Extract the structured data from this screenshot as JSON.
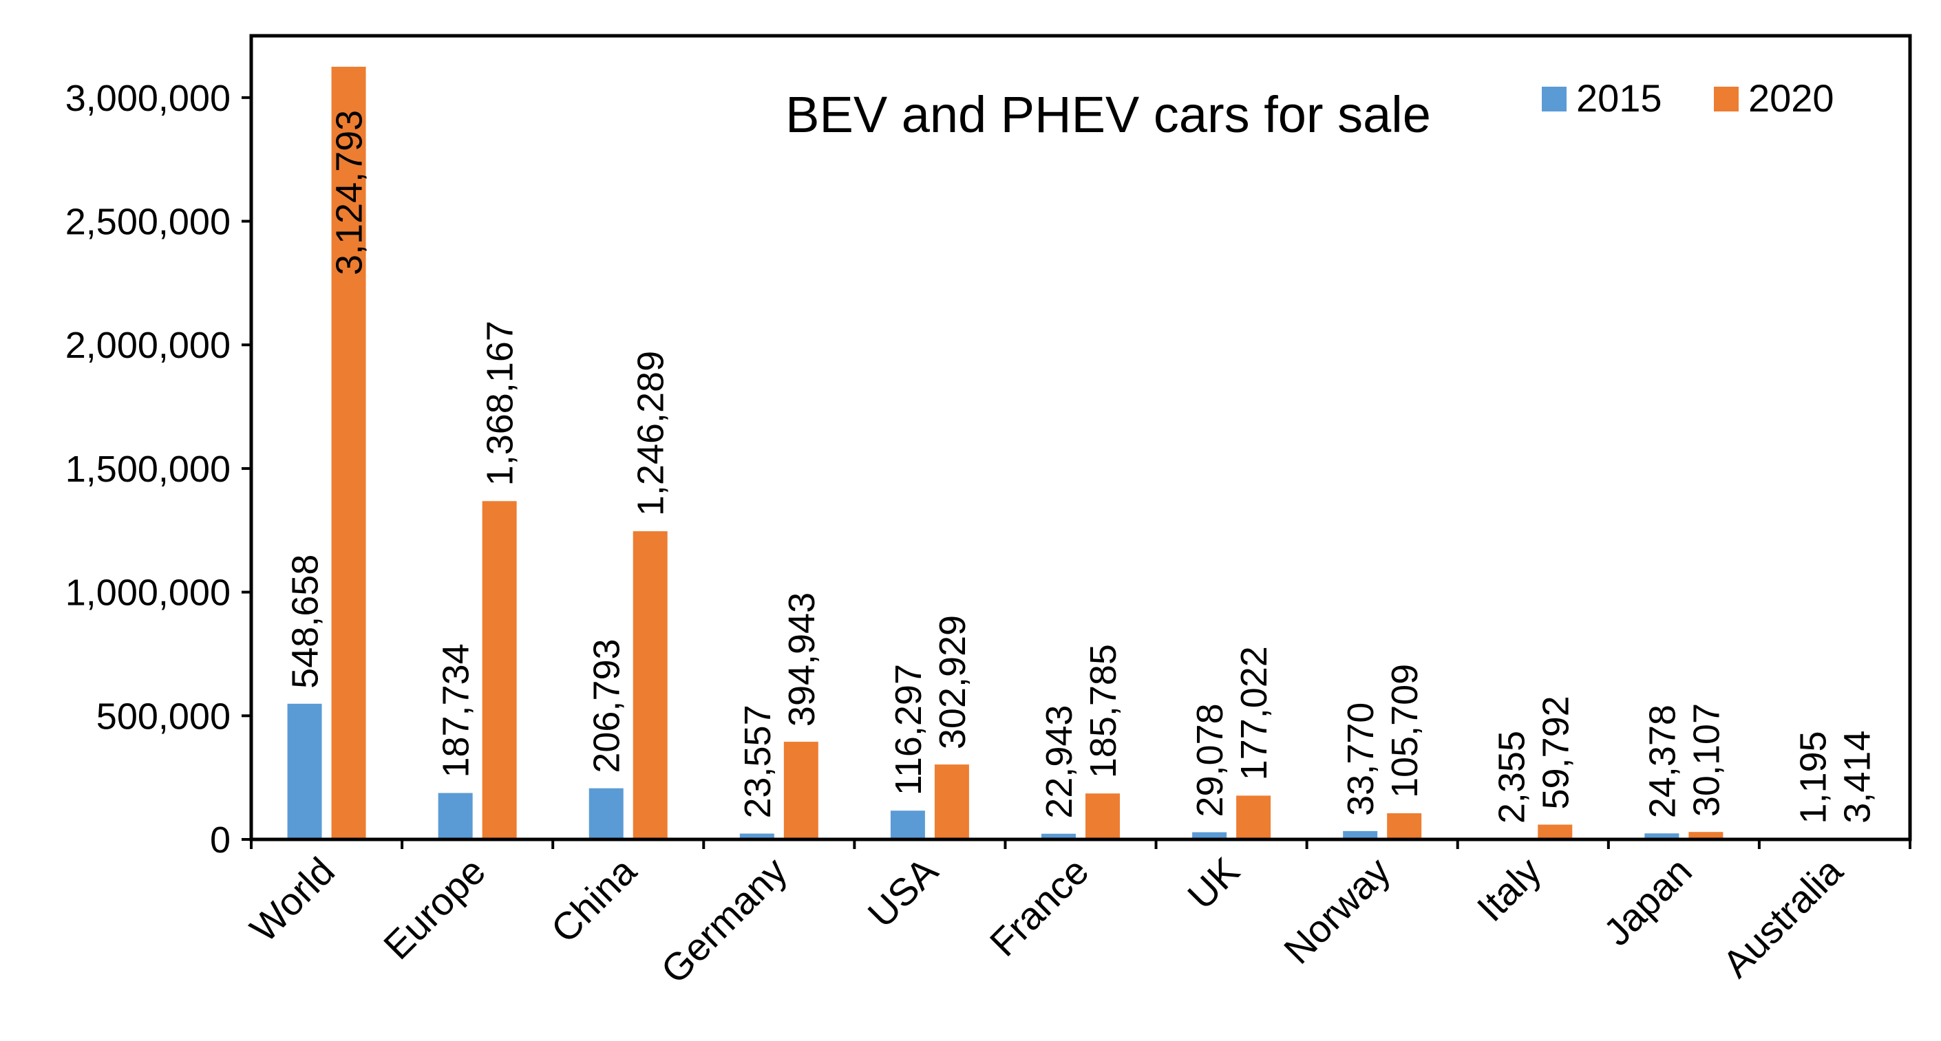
{
  "chart_data": {
    "type": "bar",
    "title": "BEV and PHEV cars for sale",
    "xlabel": "",
    "ylabel": "",
    "ylim": [
      0,
      3250000
    ],
    "yticks": [
      0,
      500000,
      1000000,
      1500000,
      2000000,
      2500000,
      3000000
    ],
    "ytick_labels": [
      "0",
      "500,000",
      "1,000,000",
      "1,500,000",
      "2,000,000",
      "2,500,000",
      "3,000,000"
    ],
    "grid": false,
    "legend_position": "top-right",
    "categories": [
      "World",
      "Europe",
      "China",
      "Germany",
      "USA",
      "France",
      "UK",
      "Norway",
      "Italy",
      "Japan",
      "Australia"
    ],
    "series": [
      {
        "name": "2015",
        "color": "#5b9bd5",
        "values": [
          548658,
          187734,
          206793,
          23557,
          116297,
          22943,
          29078,
          33770,
          2355,
          24378,
          1195
        ],
        "labels": [
          "548,658",
          "187,734",
          "206,793",
          "23,557",
          "116,297",
          "22,943",
          "29,078",
          "33,770",
          "2,355",
          "24,378",
          "1,195"
        ]
      },
      {
        "name": "2020",
        "color": "#ed7d31",
        "values": [
          3124793,
          1368167,
          1246289,
          394943,
          302929,
          185785,
          177022,
          105709,
          59792,
          30107,
          3414
        ],
        "labels": [
          "3,124,793",
          "1,368,167",
          "1,246,289",
          "394,943",
          "302,929",
          "185,785",
          "177,022",
          "105,709",
          "59,792",
          "30,107",
          "3,414"
        ]
      }
    ]
  }
}
